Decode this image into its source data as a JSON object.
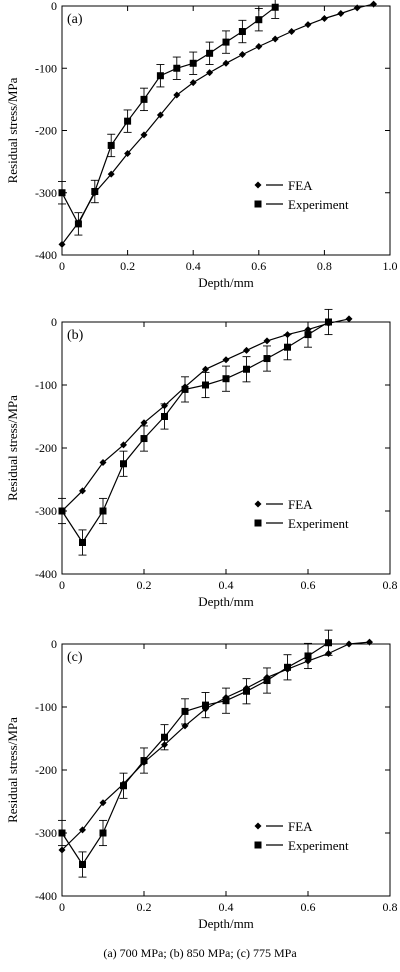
{
  "chart_data": [
    {
      "type": "line",
      "panel_label": "(a)",
      "xlabel": "Depth/mm",
      "ylabel": "Residual stress/MPa",
      "xlim": [
        0,
        1.0
      ],
      "ylim": [
        -400,
        0
      ],
      "xticks": [
        0,
        0.2,
        0.4,
        0.6,
        0.8,
        1.0
      ],
      "xtick_labels": [
        "0",
        "0.2",
        "0.4",
        "0.6",
        "0.8",
        "1.0"
      ],
      "yticks": [
        0,
        -100,
        -200,
        -300,
        -400
      ],
      "ytick_labels": [
        "0",
        "-100",
        "-200",
        "-300",
        "-400"
      ],
      "legend_position": "lower-right",
      "series": [
        {
          "name": "FEA",
          "marker": "diamond",
          "x": [
            0,
            0.05,
            0.1,
            0.15,
            0.2,
            0.25,
            0.3,
            0.35,
            0.4,
            0.45,
            0.5,
            0.55,
            0.6,
            0.65,
            0.7,
            0.75,
            0.8,
            0.85,
            0.9,
            0.95
          ],
          "y": [
            -383,
            -348,
            -300,
            -270,
            -237,
            -207,
            -175,
            -143,
            -123,
            -107,
            -92,
            -78,
            -65,
            -53,
            -41,
            -30,
            -20,
            -12,
            -3,
            3
          ]
        },
        {
          "name": "Experiment",
          "marker": "square",
          "x": [
            0,
            0.05,
            0.1,
            0.15,
            0.2,
            0.25,
            0.3,
            0.35,
            0.4,
            0.45,
            0.5,
            0.55,
            0.6,
            0.65
          ],
          "y": [
            -300,
            -350,
            -298,
            -224,
            -185,
            -150,
            -112,
            -100,
            -92,
            -76,
            -58,
            -41,
            -22,
            -2
          ],
          "error": 18
        }
      ]
    },
    {
      "type": "line",
      "panel_label": "(b)",
      "xlabel": "Depth/mm",
      "ylabel": "Residual stress/MPa",
      "xlim": [
        0,
        0.8
      ],
      "ylim": [
        -400,
        0
      ],
      "xticks": [
        0,
        0.2,
        0.4,
        0.6,
        0.8
      ],
      "xtick_labels": [
        "0",
        "0.2",
        "0.4",
        "0.6",
        "0.8"
      ],
      "yticks": [
        0,
        -100,
        -200,
        -300,
        -400
      ],
      "ytick_labels": [
        "0",
        "-100",
        "-200",
        "-300",
        "-400"
      ],
      "legend_position": "lower-right",
      "series": [
        {
          "name": "FEA",
          "marker": "diamond",
          "x": [
            0,
            0.05,
            0.1,
            0.15,
            0.2,
            0.25,
            0.3,
            0.35,
            0.4,
            0.45,
            0.5,
            0.55,
            0.6,
            0.65,
            0.7
          ],
          "y": [
            -300,
            -268,
            -223,
            -195,
            -160,
            -133,
            -103,
            -75,
            -60,
            -45,
            -30,
            -20,
            -12,
            -2,
            5
          ]
        },
        {
          "name": "Experiment",
          "marker": "square",
          "x": [
            0,
            0.05,
            0.1,
            0.15,
            0.2,
            0.25,
            0.3,
            0.35,
            0.4,
            0.45,
            0.5,
            0.55,
            0.6,
            0.65
          ],
          "y": [
            -300,
            -350,
            -300,
            -225,
            -185,
            -150,
            -107,
            -100,
            -90,
            -75,
            -58,
            -40,
            -20,
            0
          ],
          "error": 20
        }
      ]
    },
    {
      "type": "line",
      "panel_label": "(c)",
      "xlabel": "Depth/mm",
      "ylabel": "Residual stress/MPa",
      "xlim": [
        0,
        0.8
      ],
      "ylim": [
        -400,
        0
      ],
      "xticks": [
        0,
        0.2,
        0.4,
        0.6,
        0.8
      ],
      "xtick_labels": [
        "0",
        "0.2",
        "0.4",
        "0.6",
        "0.8"
      ],
      "yticks": [
        0,
        -100,
        -200,
        -300,
        -400
      ],
      "ytick_labels": [
        "0",
        "-100",
        "-200",
        "-300",
        "-400"
      ],
      "legend_position": "lower-right",
      "series": [
        {
          "name": "FEA",
          "marker": "diamond",
          "x": [
            0,
            0.05,
            0.1,
            0.15,
            0.2,
            0.25,
            0.3,
            0.35,
            0.4,
            0.45,
            0.5,
            0.55,
            0.6,
            0.65,
            0.7,
            0.75
          ],
          "y": [
            -327,
            -295,
            -252,
            -222,
            -188,
            -160,
            -130,
            -103,
            -85,
            -70,
            -53,
            -40,
            -27,
            -15,
            0,
            3
          ]
        },
        {
          "name": "Experiment",
          "marker": "square",
          "x": [
            0,
            0.05,
            0.1,
            0.15,
            0.2,
            0.25,
            0.3,
            0.35,
            0.4,
            0.45,
            0.5,
            0.55,
            0.6,
            0.65
          ],
          "y": [
            -300,
            -350,
            -300,
            -225,
            -185,
            -148,
            -107,
            -97,
            -90,
            -75,
            -58,
            -37,
            -19,
            2
          ],
          "error": 20
        }
      ]
    }
  ],
  "caption": "(a) 700 MPa; (b) 850 MPa; (c) 775 MPa"
}
